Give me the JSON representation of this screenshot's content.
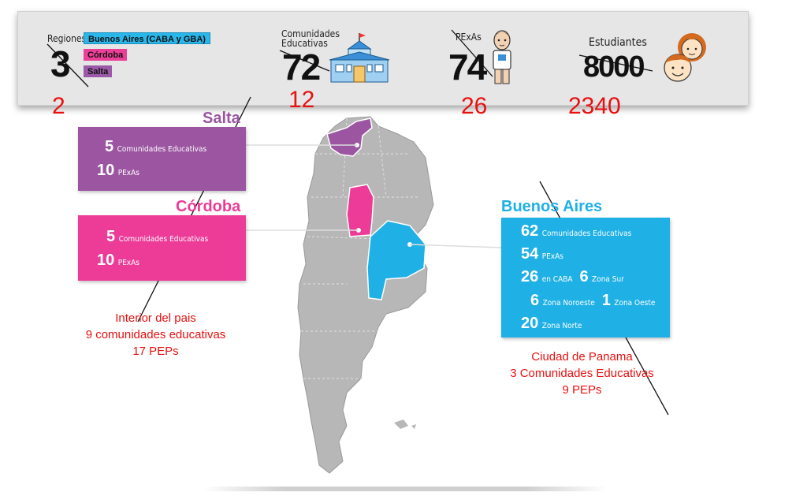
{
  "header": {
    "regiones": {
      "label": "Regiones",
      "value": "3",
      "annotation": "2"
    },
    "comunidades": {
      "label_line1": "Comunidades",
      "label_line2": "Educativas",
      "value": "72",
      "annotation": "12"
    },
    "pexas": {
      "label": "PExAs",
      "value": "74",
      "annotation": "26"
    },
    "estudiantes": {
      "label": "Estudiantes",
      "value": "8000",
      "annotation": "2340"
    },
    "region_tags": [
      {
        "label": "Buenos Aires (CABA y GBA)",
        "color": "#29b6e8"
      },
      {
        "label": "Córdoba",
        "color": "#ec3f97"
      },
      {
        "label": "Salta",
        "color": "#9b59a8"
      }
    ]
  },
  "salta": {
    "title": "Salta",
    "color": "#9b55a1",
    "rows": [
      {
        "num": "5",
        "text": "Comunidades Educativas"
      },
      {
        "num": "10",
        "text": "PExAs"
      }
    ]
  },
  "cordoba": {
    "title": "Córdoba",
    "color": "#ec3c98",
    "rows": [
      {
        "num": "5",
        "text": "Comunidades Educativas"
      },
      {
        "num": "10",
        "text": "PExAs"
      }
    ]
  },
  "buenos_aires": {
    "title": "Buenos Aires",
    "color": "#1fb0e6",
    "rows": [
      {
        "num": "62",
        "text": "Comunidades Educativas"
      },
      {
        "num": "54",
        "text": "PExAs"
      },
      {
        "num": "26",
        "text": "en CABA",
        "num2": "6",
        "text2": "Zona Sur"
      },
      {
        "num": "6",
        "text": "Zona Noroeste",
        "num2": "1",
        "text2": "Zona Oeste"
      },
      {
        "num": "20",
        "text": "Zona Norte"
      }
    ]
  },
  "notes": {
    "interior": {
      "line1": "Interior del pais",
      "line2": "9 comunidades educativas",
      "line3": "17 PEPs"
    },
    "panama": {
      "line1": "Ciudad de Panama",
      "line2": "3 Comunidades Educativas",
      "line3": "9 PEPs"
    }
  },
  "colors": {
    "map_gray": "#b7b7b7",
    "annotation_red": "#e81010"
  }
}
